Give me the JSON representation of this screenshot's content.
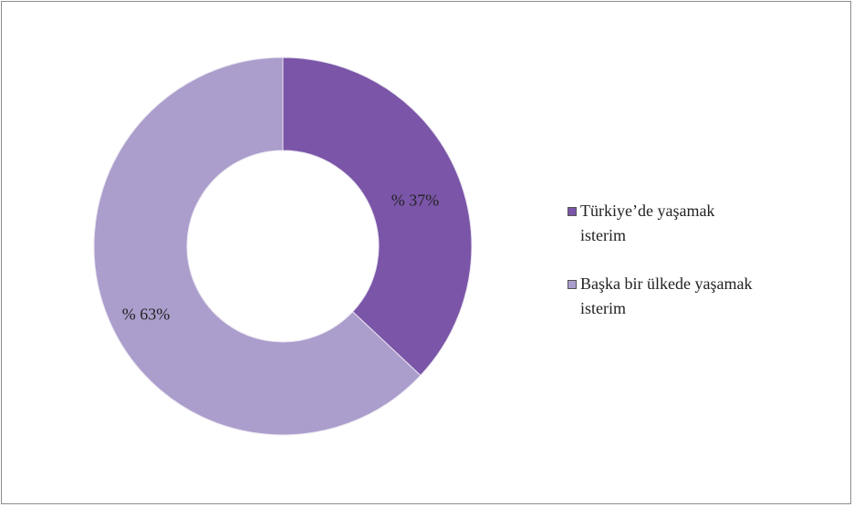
{
  "chart_data": {
    "type": "donut",
    "categories": [
      "Türkiye’de yaşamak isterim",
      "Başka bir ülkede yaşamak isterim"
    ],
    "values": [
      37,
      63
    ],
    "value_labels": [
      "% 37%",
      "% 63%"
    ],
    "colors": [
      "#7b55a8",
      "#ab9dcc"
    ],
    "legend": "right"
  }
}
